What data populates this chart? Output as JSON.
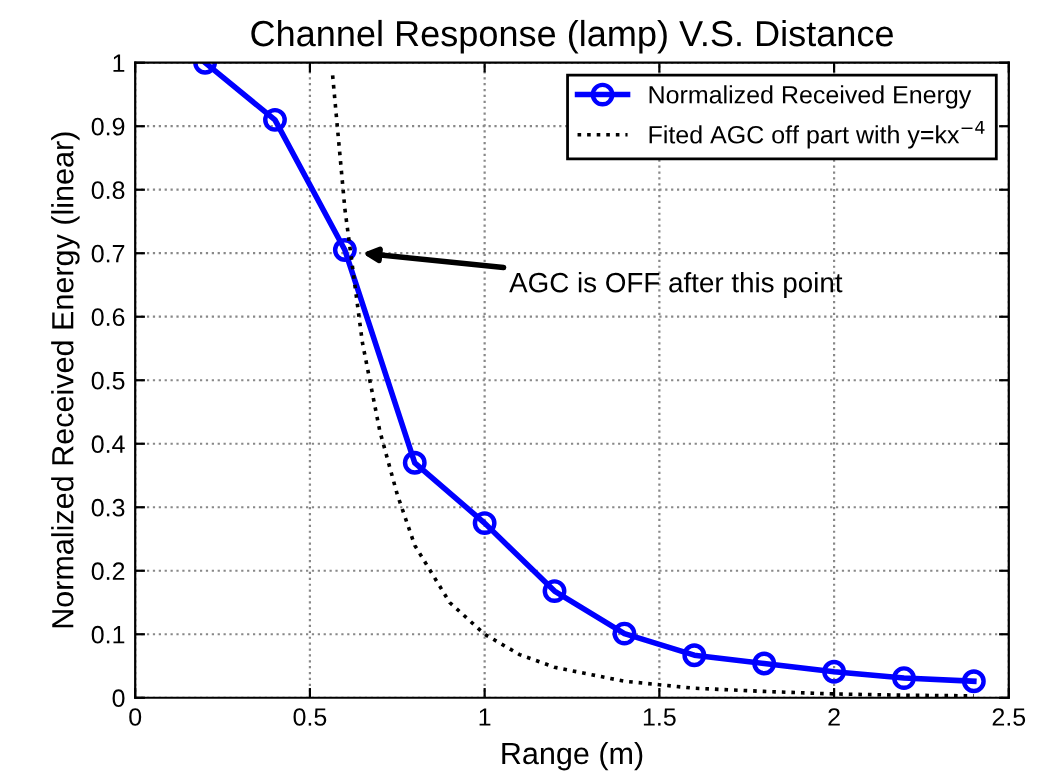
{
  "chart_data": {
    "type": "line",
    "title": "Channel Response (lamp) V.S. Distance",
    "xlabel": "Range (m)",
    "ylabel": "Normalized Received Energy (linear)",
    "series": [
      {
        "name": "Normalized Received Energy",
        "color": "#0000ff",
        "marker": "circle",
        "line_style": "solid",
        "x": [
          0.2,
          0.4,
          0.6,
          0.8,
          1.0,
          1.2,
          1.4,
          1.6,
          1.8,
          2.0,
          2.2,
          2.4
        ],
        "values": [
          1.0,
          0.91,
          0.705,
          0.37,
          0.275,
          0.168,
          0.101,
          0.067,
          0.054,
          0.041,
          0.031,
          0.026
        ]
      },
      {
        "name": "Fited AGC off part with y=kx$^{−4}$",
        "color": "#000000",
        "marker": "none",
        "line_style": "dotted",
        "x": [
          0.565,
          0.6,
          0.65,
          0.7,
          0.75,
          0.8,
          0.9,
          1.0,
          1.1,
          1.2,
          1.4,
          1.6,
          1.8,
          2.0,
          2.2,
          2.4
        ],
        "values": [
          0.98,
          0.77,
          0.56,
          0.42,
          0.32,
          0.24,
          0.15,
          0.1,
          0.068,
          0.048,
          0.026,
          0.015,
          0.01,
          0.006,
          0.004,
          0.003
        ]
      }
    ],
    "annotations": [
      {
        "text": "AGC is OFF after this point",
        "x": 0.65,
        "y": 0.7
      }
    ],
    "xlim": [
      0,
      2.5
    ],
    "ylim": [
      0,
      1
    ],
    "xticks": [
      0,
      0.5,
      1,
      1.5,
      2,
      2.5
    ],
    "yticks": [
      0,
      0.1,
      0.2,
      0.3,
      0.4,
      0.5,
      0.6,
      0.7,
      0.8,
      0.9,
      1
    ],
    "grid": true,
    "legend": "top right"
  }
}
